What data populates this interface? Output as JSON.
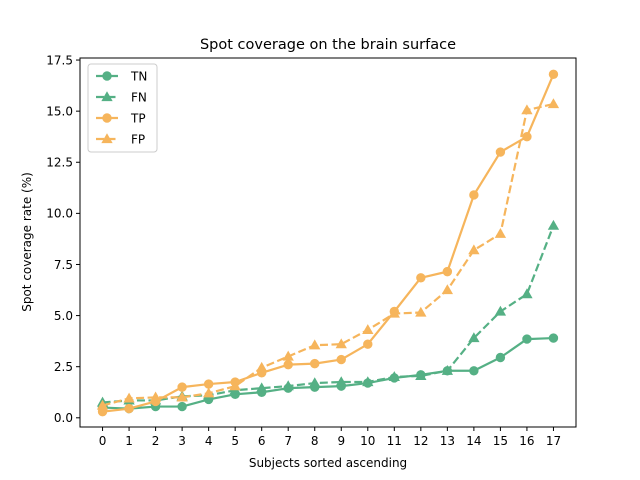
{
  "chart_data": {
    "type": "line",
    "title": "Spot coverage on the brain surface",
    "xlabel": "Subjects sorted ascending",
    "ylabel": "Spot coverage rate (%)",
    "x": [
      0,
      1,
      2,
      3,
      4,
      5,
      6,
      7,
      8,
      9,
      10,
      11,
      12,
      13,
      14,
      15,
      16,
      17
    ],
    "x_ticks": [
      "0",
      "1",
      "2",
      "3",
      "4",
      "5",
      "6",
      "7",
      "8",
      "9",
      "10",
      "11",
      "12",
      "13",
      "14",
      "15",
      "16",
      "17"
    ],
    "xlim": [
      -0.85,
      17.85
    ],
    "ylim": [
      -0.45,
      17.6
    ],
    "y_ticks": [
      "0.0",
      "2.5",
      "5.0",
      "7.5",
      "10.0",
      "12.5",
      "15.0",
      "17.5"
    ],
    "grid": false,
    "legend_position": "top-left",
    "series": [
      {
        "name": "TN",
        "color": "#55b085",
        "linestyle": "solid",
        "marker": "circle",
        "values": [
          0.5,
          0.45,
          0.55,
          0.55,
          0.9,
          1.15,
          1.25,
          1.45,
          1.5,
          1.55,
          1.7,
          1.95,
          2.1,
          2.3,
          2.3,
          2.95,
          3.85,
          3.9
        ]
      },
      {
        "name": "FN",
        "color": "#55b085",
        "linestyle": "dashed",
        "marker": "triangle",
        "values": [
          0.75,
          0.85,
          0.85,
          1.05,
          1.1,
          1.35,
          1.45,
          1.55,
          1.7,
          1.75,
          1.75,
          2.0,
          2.05,
          2.3,
          3.9,
          5.2,
          6.05,
          9.4
        ]
      },
      {
        "name": "TP",
        "color": "#f6b55c",
        "linestyle": "solid",
        "marker": "circle",
        "values": [
          0.3,
          0.45,
          0.8,
          1.5,
          1.65,
          1.75,
          2.2,
          2.6,
          2.65,
          2.85,
          3.6,
          5.2,
          6.85,
          7.15,
          10.9,
          13.0,
          13.75,
          16.8
        ]
      },
      {
        "name": "FP",
        "color": "#f6b55c",
        "linestyle": "dashed",
        "marker": "triangle",
        "values": [
          0.6,
          0.95,
          1.0,
          1.0,
          1.2,
          1.55,
          2.45,
          3.0,
          3.55,
          3.6,
          4.3,
          5.1,
          5.15,
          6.25,
          8.2,
          9.0,
          15.05,
          15.35
        ]
      }
    ]
  }
}
